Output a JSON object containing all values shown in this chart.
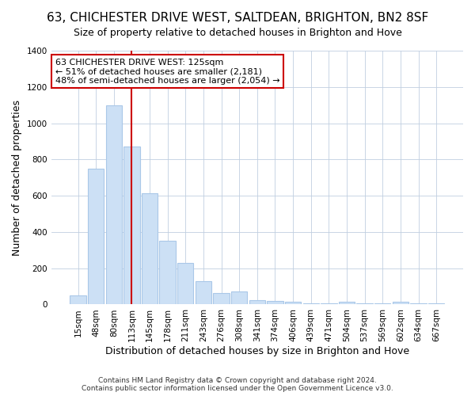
{
  "title": "63, CHICHESTER DRIVE WEST, SALTDEAN, BRIGHTON, BN2 8SF",
  "subtitle": "Size of property relative to detached houses in Brighton and Hove",
  "xlabel": "Distribution of detached houses by size in Brighton and Hove",
  "ylabel": "Number of detached properties",
  "footnote": "Contains HM Land Registry data © Crown copyright and database right 2024.\nContains public sector information licensed under the Open Government Licence v3.0.",
  "bar_labels": [
    "15sqm",
    "48sqm",
    "80sqm",
    "113sqm",
    "145sqm",
    "178sqm",
    "211sqm",
    "243sqm",
    "276sqm",
    "308sqm",
    "341sqm",
    "374sqm",
    "406sqm",
    "439sqm",
    "471sqm",
    "504sqm",
    "537sqm",
    "569sqm",
    "602sqm",
    "634sqm",
    "667sqm"
  ],
  "bar_values": [
    50,
    750,
    1100,
    870,
    615,
    350,
    230,
    130,
    65,
    70,
    25,
    20,
    15,
    5,
    5,
    15,
    5,
    5,
    15,
    5,
    5
  ],
  "bar_color": "#cce0f5",
  "bar_edgecolor": "#aac8e8",
  "vline_x_index": 3,
  "vline_color": "#cc0000",
  "annotation_text": "63 CHICHESTER DRIVE WEST: 125sqm\n← 51% of detached houses are smaller (2,181)\n48% of semi-detached houses are larger (2,054) →",
  "annotation_box_facecolor": "#ffffff",
  "annotation_box_edgecolor": "#cc0000",
  "ylim": [
    0,
    1400
  ],
  "yticks": [
    0,
    200,
    400,
    600,
    800,
    1000,
    1200,
    1400
  ],
  "bg_color": "#ffffff",
  "plot_bg_color": "#ffffff",
  "title_fontsize": 11,
  "subtitle_fontsize": 9,
  "ylabel_fontsize": 9,
  "xlabel_fontsize": 9,
  "footnote_fontsize": 6.5,
  "tick_fontsize": 7.5,
  "annot_fontsize": 8
}
